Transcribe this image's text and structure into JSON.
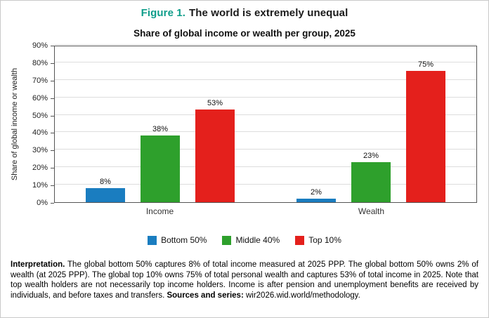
{
  "figure": {
    "label": "Figure 1.",
    "title": "The world is extremely unequal"
  },
  "chart_data": {
    "type": "bar",
    "title": "Share of global income or wealth per group, 2025",
    "ylabel": "Share of global income or wealth",
    "xlabel": "",
    "ylim": [
      0,
      90
    ],
    "ytick_step": 10,
    "ytick_suffix": "%",
    "grid": true,
    "legend_position": "bottom",
    "categories": [
      "Income",
      "Wealth"
    ],
    "series": [
      {
        "name": "Bottom 50%",
        "color": "#1a7dc0",
        "values": [
          8,
          2
        ]
      },
      {
        "name": "Middle 40%",
        "color": "#2ea02c",
        "values": [
          38,
          23
        ]
      },
      {
        "name": "Top 10%",
        "color": "#e4201c",
        "values": [
          53,
          75
        ]
      }
    ],
    "data_label_suffix": "%"
  },
  "interpretation": {
    "lead": "Interpretation.",
    "body": " The global bottom 50% captures 8% of total income measured at 2025 PPP. The global bottom 50% owns 2% of wealth (at 2025 PPP). The global top 10% owns 75% of total personal wealth and captures 53% of total income in 2025. Note that top wealth holders are not necessarily top income holders. Income is after pension and unemployment benefits are received by individuals, and before taxes and transfers. ",
    "sources_label": "Sources and series:",
    "sources_value": " wir2026.wid.world/methodology."
  },
  "colors": {
    "figure_label": "#0f9d8a"
  }
}
